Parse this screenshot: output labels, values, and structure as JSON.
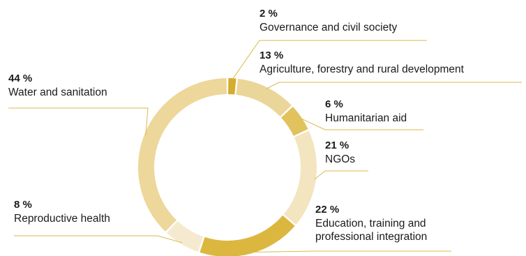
{
  "chart_data": {
    "type": "pie",
    "variant": "donut",
    "order": "clockwise-from-top",
    "slices": [
      {
        "value": 2,
        "value_label": "2 %",
        "label_lines": [
          "Governance and civil society"
        ],
        "color": "#D4AC2E"
      },
      {
        "value": 13,
        "value_label": "13 %",
        "label_lines": [
          "Agriculture, forestry and rural development"
        ],
        "color": "#EBD699"
      },
      {
        "value": 6,
        "value_label": "6 %",
        "label_lines": [
          "Humanitarian aid"
        ],
        "color": "#E2C25C"
      },
      {
        "value": 21,
        "value_label": "21 %",
        "label_lines": [
          "NGOs"
        ],
        "color": "#F3E5BF"
      },
      {
        "value": 22,
        "value_label": "22 %",
        "label_lines": [
          "Education, training and",
          "professional integration"
        ],
        "color": "#DCB73F"
      },
      {
        "value": 8,
        "value_label": "8 %",
        "label_lines": [
          "Reproductive health"
        ],
        "color": "#F5EAD0"
      },
      {
        "value": 44,
        "value_label": "44 %",
        "label_lines": [
          "Water and sanitation"
        ],
        "color": "#EDD79A"
      }
    ],
    "leader_color": "#D9B94A"
  }
}
